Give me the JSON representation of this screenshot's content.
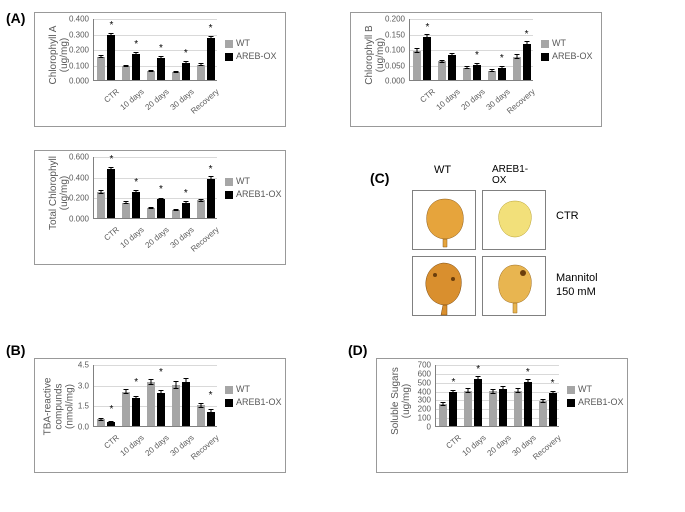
{
  "labels": {
    "A": "(A)",
    "B": "(B)",
    "C": "(C)",
    "D": "(D)"
  },
  "categories": [
    "CTR",
    "10 days",
    "20 days",
    "30 days",
    "Recovery"
  ],
  "legend": {
    "wt_label": "WT",
    "ox1_label": "AREB-OX",
    "ox2_label": "AREB1-OX"
  },
  "colors": {
    "wt": "#a6a6a6",
    "ox": "#000000",
    "grid": "#d9d9d9",
    "axis": "#808080",
    "text": "#595959"
  },
  "charts": {
    "chlA": {
      "ylabel": "Chlorophyll A\n(ug/mg)",
      "ymax": 0.4,
      "ystep": 0.1,
      "decimals": 3,
      "wt": [
        0.15,
        0.09,
        0.06,
        0.05,
        0.1
      ],
      "ox": [
        0.29,
        0.17,
        0.14,
        0.11,
        0.27
      ],
      "wt_err": [
        0.01,
        0.008,
        0.006,
        0.006,
        0.01
      ],
      "ox_err": [
        0.015,
        0.012,
        0.012,
        0.01,
        0.015
      ],
      "stars": [
        true,
        true,
        true,
        true,
        true
      ]
    },
    "chlB": {
      "ylabel": "Chlorophyll B\n(ug/mg)",
      "ymax": 0.2,
      "ystep": 0.05,
      "decimals": 3,
      "wt": [
        0.095,
        0.06,
        0.04,
        0.03,
        0.075
      ],
      "ox": [
        0.14,
        0.08,
        0.05,
        0.04,
        0.115
      ],
      "wt_err": [
        0.008,
        0.006,
        0.005,
        0.004,
        0.008
      ],
      "ox_err": [
        0.01,
        0.006,
        0.005,
        0.005,
        0.01
      ],
      "stars": [
        true,
        false,
        true,
        true,
        true
      ]
    },
    "total": {
      "ylabel": "Total Chlorophyll\n(ug/mg)",
      "ymax": 0.6,
      "ystep": 0.2,
      "decimals": 3,
      "wt": [
        0.25,
        0.15,
        0.1,
        0.08,
        0.17
      ],
      "ox": [
        0.47,
        0.25,
        0.18,
        0.15,
        0.38
      ],
      "wt_err": [
        0.02,
        0.015,
        0.01,
        0.01,
        0.015
      ],
      "ox_err": [
        0.025,
        0.02,
        0.018,
        0.015,
        0.025
      ],
      "stars": [
        true,
        true,
        true,
        true,
        true
      ]
    },
    "tba": {
      "ylabel": "TBA-reactive\ncompunds\n(nmol/mg)",
      "ymax": 4.5,
      "ystep": 1.5,
      "decimals": 1,
      "wt": [
        0.5,
        2.5,
        3.2,
        3.0,
        1.5
      ],
      "ox": [
        0.3,
        2.0,
        2.4,
        3.2,
        1.0
      ],
      "wt_err": [
        0.1,
        0.2,
        0.2,
        0.3,
        0.2
      ],
      "ox_err": [
        0.1,
        0.2,
        0.2,
        0.3,
        0.2
      ],
      "stars": [
        true,
        true,
        true,
        false,
        true
      ]
    },
    "sugars": {
      "ylabel": "Soluble Sugars\n(ug/mg)",
      "ymax": 700,
      "ystep": 100,
      "decimals": 0,
      "wt": [
        250,
        400,
        390,
        400,
        280
      ],
      "ox": [
        380,
        530,
        420,
        500,
        370
      ],
      "wt_err": [
        25,
        30,
        30,
        30,
        25
      ],
      "ox_err": [
        30,
        40,
        35,
        35,
        30
      ],
      "stars": [
        true,
        true,
        false,
        true,
        true
      ]
    }
  },
  "panelC": {
    "col_wt": "WT",
    "col_ox": "AREB1-\nOX",
    "row_ctr": "CTR",
    "row_man1": "Mannitol",
    "row_man2": "150 mM",
    "leaf_colors": {
      "wt_ctr": "#e6a43c",
      "ox_ctr": "#f2e07a",
      "wt_man": "#d98f2e",
      "ox_man": "#e8b550"
    }
  }
}
